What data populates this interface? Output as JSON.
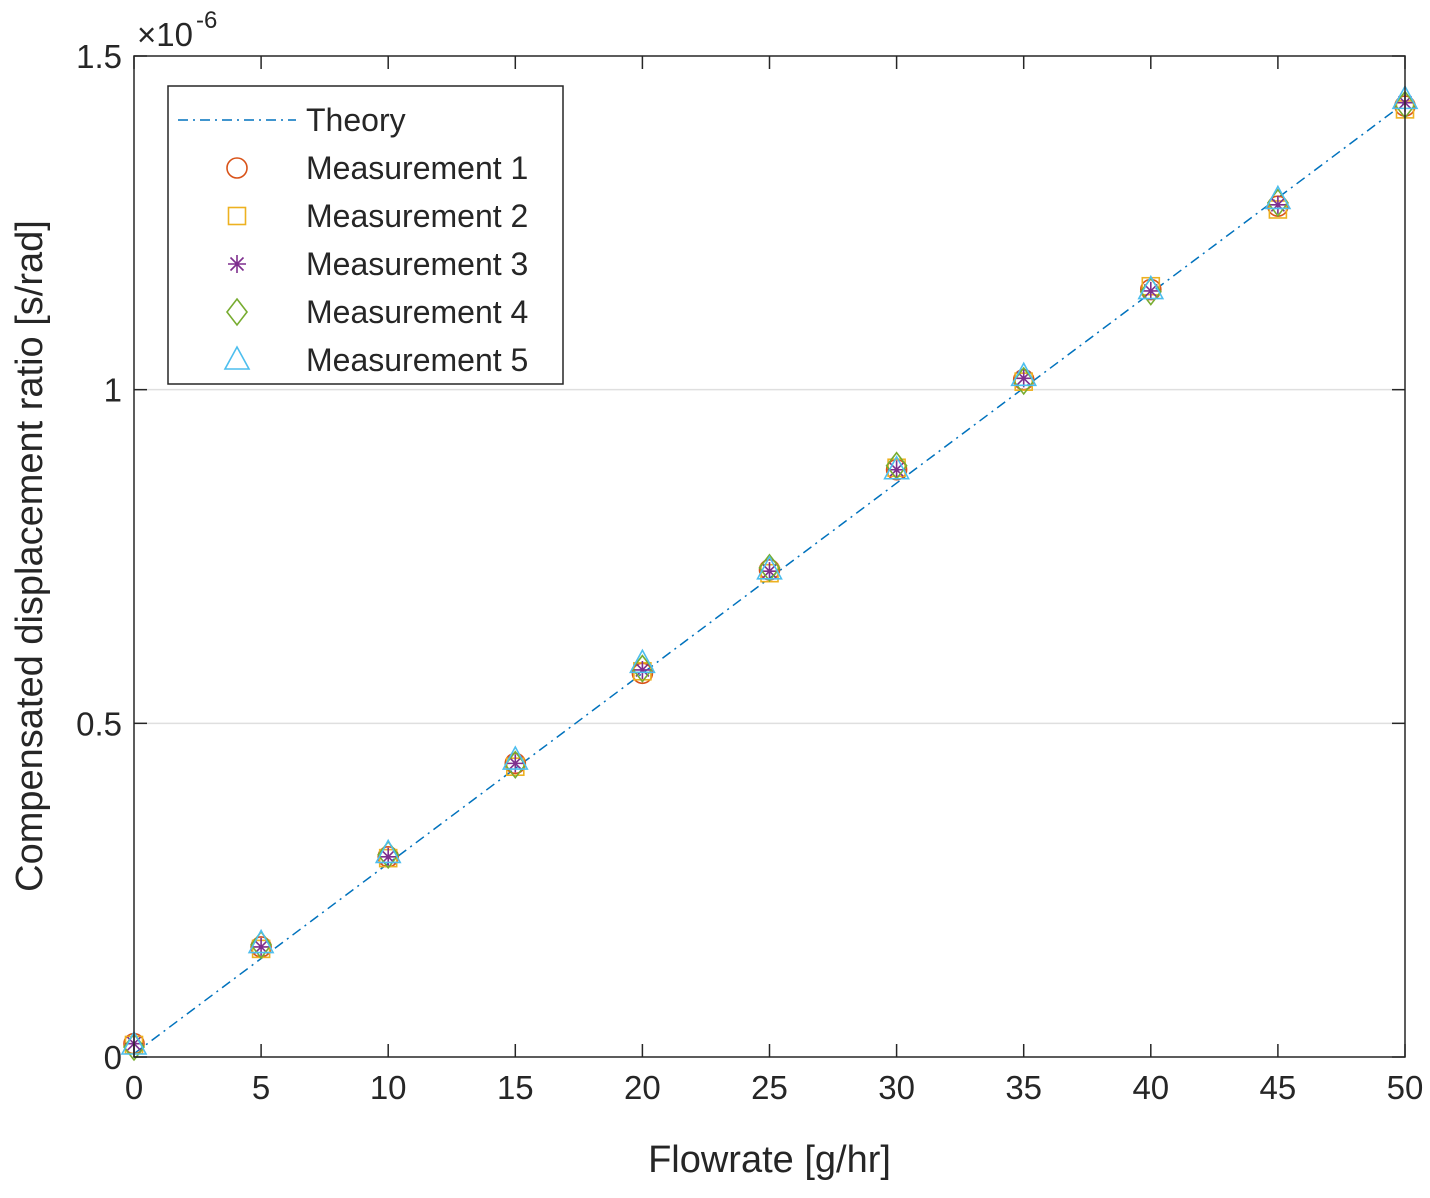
{
  "chart_data": {
    "type": "scatter",
    "title": "",
    "xlabel": "Flowrate [g/hr]",
    "ylabel": "Compensated displacement ratio [s/rad]",
    "xlim": [
      0,
      50
    ],
    "ylim": [
      0,
      1.5
    ],
    "x_ticks": [
      0,
      5,
      10,
      15,
      20,
      25,
      30,
      35,
      40,
      45,
      50
    ],
    "x_tick_labels": [
      "0",
      "5",
      "10",
      "15",
      "20",
      "25",
      "30",
      "35",
      "40",
      "45",
      "50"
    ],
    "y_ticks": [
      0,
      0.5,
      1,
      1.5
    ],
    "y_tick_labels": [
      "0",
      "0.5",
      "1",
      "1.5"
    ],
    "y_exponent_base": "×10",
    "y_exponent_power": "-6",
    "grid": "horizontal",
    "legend_position": "top-left",
    "series": [
      {
        "name": "Theory",
        "style": "dash-dot-line",
        "color": "#0072BD",
        "x": [
          0,
          50
        ],
        "values": [
          0.005,
          1.43
        ]
      },
      {
        "name": "Measurement 1",
        "style": "circle",
        "color": "#D95319",
        "x": [
          0,
          5,
          10,
          15,
          20,
          25,
          30,
          35,
          40,
          45,
          50
        ],
        "values": [
          0.02,
          0.165,
          0.3,
          0.44,
          0.575,
          0.73,
          0.88,
          1.015,
          1.15,
          1.275,
          1.425
        ]
      },
      {
        "name": "Measurement 2",
        "style": "square",
        "color": "#EDB120",
        "x": [
          0,
          5,
          10,
          15,
          20,
          25,
          30,
          35,
          40,
          45,
          50
        ],
        "values": [
          0.018,
          0.162,
          0.298,
          0.435,
          0.578,
          0.725,
          0.883,
          1.012,
          1.155,
          1.27,
          1.42
        ]
      },
      {
        "name": "Measurement 3",
        "style": "asterisk",
        "color": "#7E2F8E",
        "x": [
          0,
          5,
          10,
          15,
          20,
          25,
          30,
          35,
          40,
          45,
          50
        ],
        "values": [
          0.02,
          0.165,
          0.3,
          0.44,
          0.58,
          0.728,
          0.88,
          1.017,
          1.148,
          1.277,
          1.43
        ]
      },
      {
        "name": "Measurement 4",
        "style": "diamond",
        "color": "#77AC30",
        "x": [
          0,
          5,
          10,
          15,
          20,
          25,
          30,
          35,
          40,
          45,
          50
        ],
        "values": [
          0.015,
          0.168,
          0.303,
          0.438,
          0.582,
          0.733,
          0.886,
          1.013,
          1.147,
          1.28,
          1.427
        ]
      },
      {
        "name": "Measurement 5",
        "style": "triangle",
        "color": "#4DBEEE",
        "x": [
          0,
          5,
          10,
          15,
          20,
          25,
          30,
          35,
          40,
          45,
          50
        ],
        "values": [
          0.018,
          0.17,
          0.305,
          0.445,
          0.59,
          0.73,
          0.88,
          1.02,
          1.15,
          1.285,
          1.435
        ]
      }
    ]
  }
}
